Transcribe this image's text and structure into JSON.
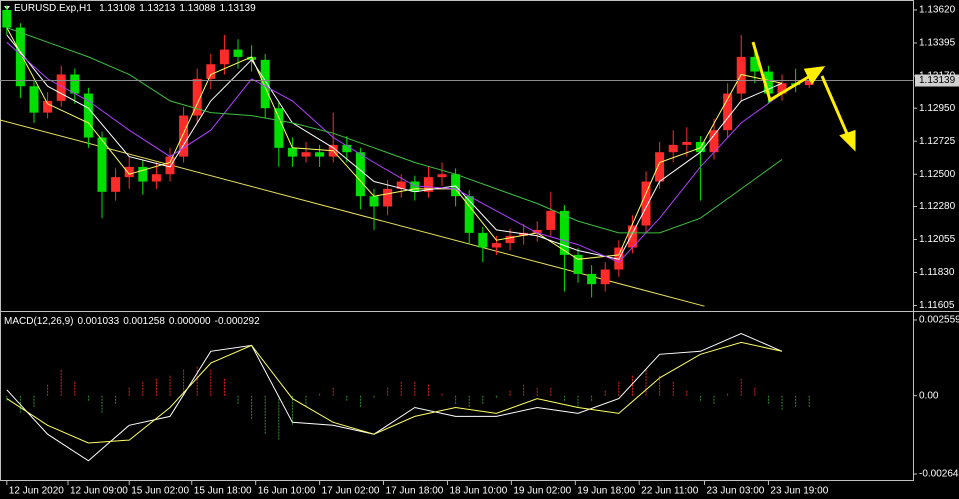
{
  "chart_data": [
    {
      "type": "candlestick",
      "title": "EURUSD.Exp,H1",
      "up_color": "#ff2a2a",
      "down_color": "#00e000",
      "grid": false,
      "ohlc": [
        [
          1.1362,
          1.1365,
          1.1345,
          1.135
        ],
        [
          1.135,
          1.1353,
          1.1302,
          1.131
        ],
        [
          1.131,
          1.1314,
          1.1285,
          1.1292
        ],
        [
          1.1292,
          1.1306,
          1.1288,
          1.13
        ],
        [
          1.13,
          1.1324,
          1.1296,
          1.1318
        ],
        [
          1.1318,
          1.1322,
          1.1298,
          1.1305
        ],
        [
          1.1305,
          1.1309,
          1.1268,
          1.1275
        ],
        [
          1.1275,
          1.1279,
          1.122,
          1.1238
        ],
        [
          1.1238,
          1.1254,
          1.1232,
          1.1248
        ],
        [
          1.1248,
          1.1262,
          1.124,
          1.1255
        ],
        [
          1.1255,
          1.126,
          1.1236,
          1.1245
        ],
        [
          1.1245,
          1.1258,
          1.124,
          1.125
        ],
        [
          1.125,
          1.1268,
          1.1245,
          1.1262
        ],
        [
          1.1262,
          1.1296,
          1.1258,
          1.129
        ],
        [
          1.129,
          1.1322,
          1.1285,
          1.1315
        ],
        [
          1.1315,
          1.1332,
          1.1308,
          1.1325
        ],
        [
          1.1325,
          1.1345,
          1.1318,
          1.1335
        ],
        [
          1.1335,
          1.1342,
          1.1322,
          1.133
        ],
        [
          1.133,
          1.1338,
          1.132,
          1.1328
        ],
        [
          1.1328,
          1.1332,
          1.1288,
          1.1295
        ],
        [
          1.1295,
          1.1299,
          1.1255,
          1.1268
        ],
        [
          1.1268,
          1.1275,
          1.1255,
          1.1262
        ],
        [
          1.1262,
          1.1272,
          1.1258,
          1.1265
        ],
        [
          1.1265,
          1.127,
          1.1255,
          1.1262
        ],
        [
          1.1262,
          1.1292,
          1.1258,
          1.127
        ],
        [
          1.127,
          1.1276,
          1.1258,
          1.1265
        ],
        [
          1.1265,
          1.1268,
          1.1226,
          1.1235
        ],
        [
          1.1235,
          1.124,
          1.1212,
          1.1228
        ],
        [
          1.1228,
          1.1246,
          1.1222,
          1.124
        ],
        [
          1.124,
          1.125,
          1.1234,
          1.1245
        ],
        [
          1.1245,
          1.1249,
          1.1232,
          1.1238
        ],
        [
          1.1238,
          1.1255,
          1.1234,
          1.1248
        ],
        [
          1.1248,
          1.1258,
          1.1242,
          1.125
        ],
        [
          1.125,
          1.1254,
          1.1228,
          1.1235
        ],
        [
          1.1235,
          1.1239,
          1.1202,
          1.121
        ],
        [
          1.121,
          1.1214,
          1.119,
          1.12
        ],
        [
          1.12,
          1.1208,
          1.1195,
          1.1203
        ],
        [
          1.1203,
          1.1213,
          1.1198,
          1.1208
        ],
        [
          1.1208,
          1.1216,
          1.1202,
          1.121
        ],
        [
          1.121,
          1.1218,
          1.1204,
          1.1212
        ],
        [
          1.1212,
          1.1238,
          1.1208,
          1.1225
        ],
        [
          1.1225,
          1.1229,
          1.117,
          1.1195
        ],
        [
          1.1195,
          1.12,
          1.1176,
          1.1182
        ],
        [
          1.1182,
          1.1188,
          1.1166,
          1.1175
        ],
        [
          1.1175,
          1.119,
          1.117,
          1.1185
        ],
        [
          1.1185,
          1.1205,
          1.118,
          1.12
        ],
        [
          1.12,
          1.1222,
          1.1196,
          1.1215
        ],
        [
          1.1215,
          1.1252,
          1.121,
          1.1245
        ],
        [
          1.1245,
          1.1272,
          1.124,
          1.1265
        ],
        [
          1.1265,
          1.128,
          1.1258,
          1.127
        ],
        [
          1.127,
          1.1282,
          1.1262,
          1.1272
        ],
        [
          1.1272,
          1.1276,
          1.1232,
          1.1265
        ],
        [
          1.1265,
          1.1288,
          1.126,
          1.128
        ],
        [
          1.128,
          1.1312,
          1.1275,
          1.1305
        ],
        [
          1.1305,
          1.1345,
          1.13,
          1.133
        ],
        [
          1.133,
          1.1336,
          1.1312,
          1.132
        ],
        [
          1.132,
          1.1324,
          1.1298,
          1.1305
        ],
        [
          1.1305,
          1.1318,
          1.13,
          1.1312
        ],
        [
          1.1312,
          1.1322,
          1.1306,
          1.13108
        ],
        [
          1.13108,
          1.13213,
          1.13088,
          1.13139
        ]
      ],
      "xlim": [
        -0.5,
        66.63
      ],
      "xticks": [
        {
          "value": 0,
          "label": "12 Jun 2020"
        },
        {
          "value": 4.5,
          "label": "12 Jun 09:00"
        },
        {
          "value": 9,
          "label": "15 Jun 02:00"
        },
        {
          "value": 13.6,
          "label": "15 Jun 18:00"
        },
        {
          "value": 18.3,
          "label": "16 Jun 10:00"
        },
        {
          "value": 23,
          "label": "17 Jun 02:00"
        },
        {
          "value": 27.7,
          "label": "17 Jun 18:00"
        },
        {
          "value": 32.4,
          "label": "18 Jun 10:00"
        },
        {
          "value": 37.1,
          "label": "19 Jun 02:00"
        },
        {
          "value": 41.8,
          "label": "19 Jun 18:00"
        },
        {
          "value": 46.5,
          "label": "22 Jun 11:00"
        },
        {
          "value": 51.3,
          "label": "23 Jun 03:00"
        },
        {
          "value": 56,
          "label": "23 Jun 19:00"
        }
      ],
      "ylim": [
        1.11574,
        1.13688
      ],
      "yticks": [
        {
          "value": 1.1362,
          "label": "1.13620"
        },
        1.13395,
        {
          "value": 1.1317,
          "label": "1.13170"
        },
        {
          "value": 1.1295,
          "label": "1.12950"
        },
        1.12725,
        {
          "value": 1.125,
          "label": "1.12500"
        },
        {
          "value": 1.1228,
          "label": "1.12280"
        },
        1.12055,
        {
          "value": 1.1183,
          "label": "1.11830"
        },
        1.11605
      ],
      "series": [
        {
          "color": "#ffff66",
          "x": [
            0,
            3,
            6,
            9,
            12,
            15,
            18,
            21,
            24,
            27,
            30,
            33,
            36,
            39,
            42,
            45,
            48,
            51,
            54,
            57
          ],
          "values": [
            1.135,
            1.1298,
            1.1285,
            1.125,
            1.1258,
            1.1318,
            1.133,
            1.1268,
            1.1266,
            1.1235,
            1.124,
            1.124,
            1.1205,
            1.121,
            1.1192,
            1.1195,
            1.1258,
            1.1268,
            1.1318,
            1.1312
          ]
        },
        {
          "color": "#ffffff",
          "x": [
            0,
            3,
            6,
            9,
            12,
            15,
            18,
            21,
            24,
            27,
            30,
            33,
            36,
            39,
            42,
            45,
            48,
            51,
            54,
            57
          ],
          "values": [
            1.1345,
            1.131,
            1.1295,
            1.1262,
            1.1255,
            1.13,
            1.1328,
            1.1285,
            1.1268,
            1.1245,
            1.1238,
            1.1242,
            1.1212,
            1.1208,
            1.1198,
            1.1192,
            1.1245,
            1.1265,
            1.13,
            1.1312
          ]
        },
        {
          "color": "#b040ff",
          "x": [
            0,
            3,
            6,
            9,
            12,
            15,
            18,
            21,
            24,
            27,
            30,
            33,
            36,
            39,
            42,
            45,
            48,
            51,
            54,
            57
          ],
          "values": [
            1.134,
            1.1315,
            1.13,
            1.128,
            1.1262,
            1.128,
            1.1315,
            1.13,
            1.1275,
            1.1258,
            1.1242,
            1.124,
            1.1225,
            1.121,
            1.1202,
            1.119,
            1.122,
            1.1255,
            1.1285,
            1.1305
          ]
        },
        {
          "color": "#40c040",
          "x": [
            0,
            3,
            6,
            9,
            12,
            15,
            18,
            21,
            24,
            27,
            30,
            33,
            36,
            39,
            42,
            45,
            48,
            51,
            54,
            57
          ],
          "values": [
            1.135,
            1.134,
            1.133,
            1.1318,
            1.13,
            1.1292,
            1.129,
            1.1285,
            1.1278,
            1.1268,
            1.1258,
            1.125,
            1.124,
            1.123,
            1.1218,
            1.121,
            1.121,
            1.122,
            1.124,
            1.126
          ]
        }
      ],
      "trendline": {
        "color": "#e8e060",
        "x": [
          -0.5,
          51.3
        ],
        "values": [
          1.1287,
          1.116
        ]
      }
    },
    {
      "type": "macd",
      "title": "MACD(12,26,9)",
      "legend_values": [
        0.001033,
        0.001258,
        0,
        -0.000292
      ],
      "value_labels": [
        "0.001033",
        "0.001258",
        "0.000000",
        "-0.000292"
      ],
      "xlim": [
        -0.5,
        66.63
      ],
      "ylim": [
        -0.002815,
        0.002794
      ],
      "yticks": [
        0.002559,
        {
          "value": 0,
          "label": "0.00"
        },
        -0.002647
      ],
      "histogram": {
        "up_color": "#e02020",
        "down_color": "#2e8b2e",
        "values": [
          -0.0002,
          -0.0006,
          -0.0004,
          0.0004,
          0.0009,
          0.0005,
          -0.0002,
          -0.0006,
          -0.0003,
          0.0003,
          0.0005,
          0.0006,
          0.0007,
          0.0009,
          0.001,
          0.0009,
          0.0006,
          -0.0003,
          -0.0008,
          -0.0013,
          -0.0015,
          -0.001,
          -0.0004,
          0.0001,
          0.0003,
          -0.0002,
          -0.0004,
          -0.0001,
          0.0003,
          0.0005,
          0.0005,
          0.0004,
          0.0001,
          -0.0003,
          -0.0004,
          -0.0003,
          -0.0001,
          0.0002,
          0.0004,
          0.0003,
          0.0003,
          -0.0002,
          -0.0004,
          -0.0002,
          0.0002,
          0.0005,
          0.0007,
          0.0009,
          0.0007,
          0.0005,
          0.0002,
          -0.0002,
          -0.0003,
          0.0001,
          0.0006,
          0.0003,
          -0.0003,
          -0.0005,
          -0.0004,
          -0.0004
        ]
      },
      "series": [
        {
          "color": "#ffffff",
          "x": [
            0,
            3,
            6,
            9,
            12,
            15,
            18,
            21,
            24,
            27,
            30,
            33,
            36,
            39,
            42,
            45,
            48,
            51,
            54,
            57
          ],
          "values": [
            0.0002,
            -0.0013,
            -0.0022,
            -0.001,
            -0.0007,
            0.0015,
            0.0017,
            -0.0009,
            -0.001,
            -0.0013,
            -0.0004,
            -0.0007,
            -0.0007,
            -0.0004,
            -0.0006,
            -0.0001,
            0.0014,
            0.0015,
            0.0021,
            0.0015
          ]
        },
        {
          "color": "#ffff66",
          "x": [
            0,
            3,
            6,
            9,
            12,
            15,
            18,
            21,
            24,
            27,
            30,
            33,
            36,
            39,
            42,
            45,
            48,
            51,
            54,
            57
          ],
          "values": [
            -0.0001,
            -0.001,
            -0.0016,
            -0.0015,
            -0.0004,
            0.0011,
            0.0017,
            -0.0001,
            -0.0009,
            -0.0013,
            -0.0007,
            -0.0004,
            -0.0006,
            -0.0001,
            -0.0004,
            -0.0006,
            0.0006,
            0.0014,
            0.0018,
            0.0015
          ]
        }
      ]
    }
  ]
}
